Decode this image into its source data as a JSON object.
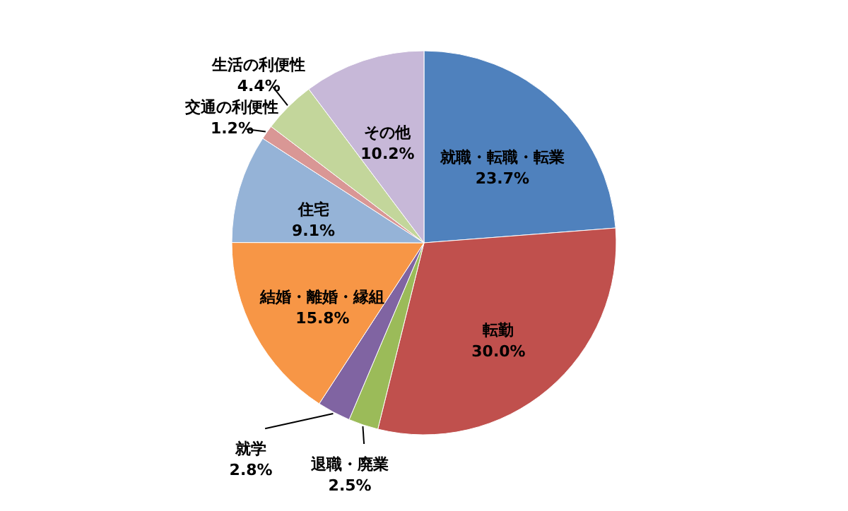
{
  "chart_data": {
    "type": "pie",
    "categories": [
      "就職・転職・転業",
      "転勤",
      "退職・廃業",
      "就学",
      "結婚・離婚・縁組",
      "住宅",
      "交通の利便性",
      "生活の利便性",
      "その他"
    ],
    "values": [
      23.7,
      30.0,
      2.5,
      2.8,
      15.8,
      9.1,
      1.2,
      4.4,
      10.2
    ],
    "value_labels": [
      "23.7%",
      "30.0%",
      "2.5%",
      "2.8%",
      "15.8%",
      "9.1%",
      "1.2%",
      "4.4%",
      "10.2%"
    ],
    "colors": [
      "#4f81bd",
      "#c0504d",
      "#9bbb59",
      "#8064a2",
      "#f79646",
      "#95b3d7",
      "#d99795",
      "#c3d69b",
      "#c7b8d8"
    ]
  }
}
